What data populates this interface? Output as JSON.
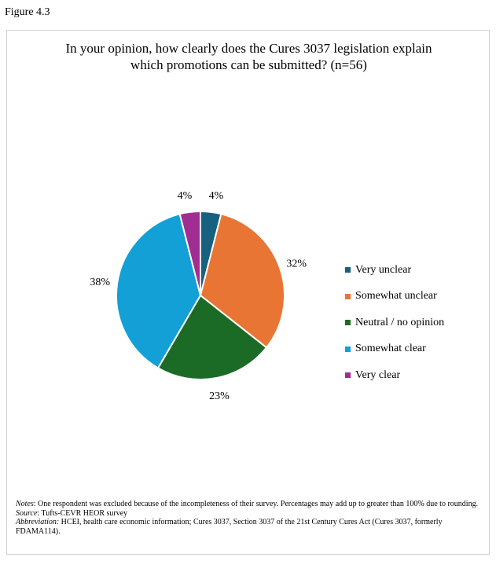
{
  "figure_label": "Figure 4.3",
  "chart_data": {
    "type": "pie",
    "title": "In your opinion, how clearly does the Cures 3037 legislation explain which promotions can be submitted? (n=56)",
    "title_lines": [
      "In your opinion, how clearly does the Cures 3037 legislation explain",
      "which promotions can be submitted? (n=56)"
    ],
    "categories": [
      "Very unclear",
      "Somewhat unclear",
      "Neutral / no opinion",
      "Somewhat clear",
      "Very clear"
    ],
    "values": [
      4,
      32,
      23,
      38,
      4
    ],
    "labels": [
      "4%",
      "32%",
      "23%",
      "38%",
      "4%"
    ],
    "colors": [
      "#17607f",
      "#e97534",
      "#1b6b27",
      "#12a0d7",
      "#a02d91"
    ],
    "legend_position": "right"
  },
  "notes": {
    "notes_label": "Notes",
    "notes_text": ": One respondent was excluded because of the incompleteness of their survey. Percentages may add up to greater than 100% due to rounding.",
    "source_label": "Source",
    "source_text": ": Tufts-CEVR HEOR survey",
    "abbr_label": "Abbreviation:",
    "abbr_text": " HCEI, health care economic information; Cures 3037, Section 3037 of the 21st Century Cures Act (Cures 3037, formerly FDAMA114)."
  }
}
